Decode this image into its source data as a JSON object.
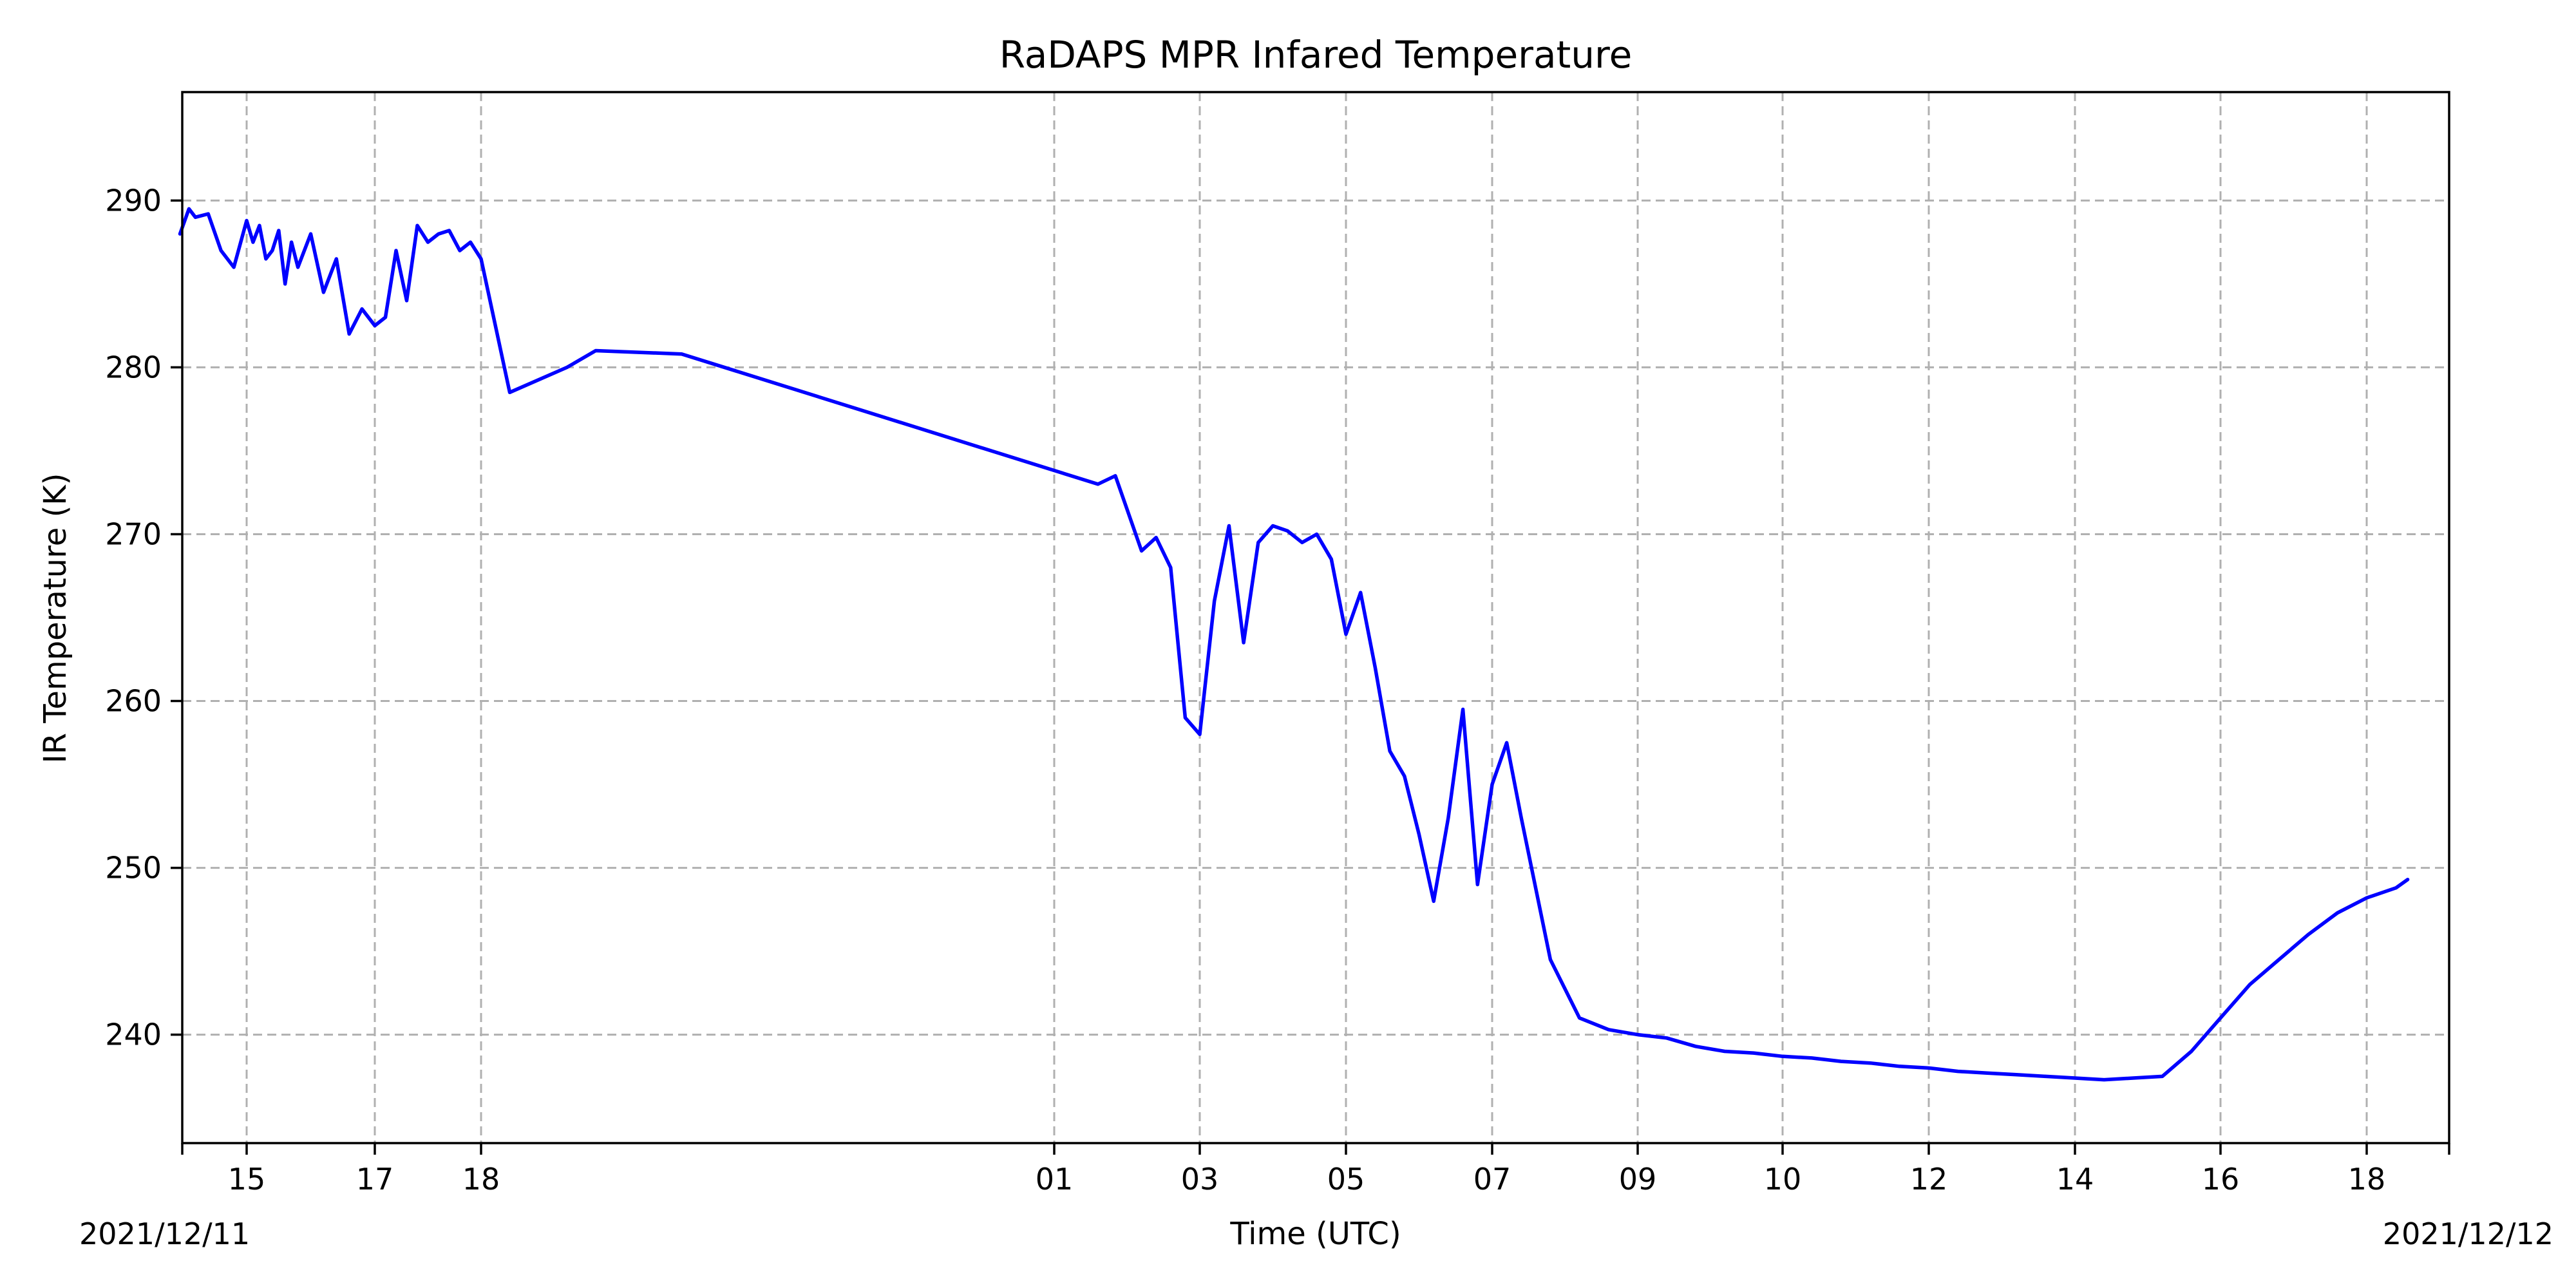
{
  "chart_data": {
    "type": "line",
    "title": "RaDAPS MPR Infared Temperature",
    "xlabel": "Time (UTC)",
    "ylabel": "IR Temperature (K)",
    "ylim": [
      233.5,
      296.5
    ],
    "grid": true,
    "start_date_label": "2021/12/11",
    "end_date_label": "2021/12/12",
    "x_ticks": [
      "15",
      "17",
      "18",
      "01",
      "03",
      "05",
      "07",
      "09",
      "10",
      "12",
      "14",
      "16",
      "18"
    ],
    "y_ticks": [
      240,
      250,
      260,
      270,
      280,
      290
    ],
    "series": [
      {
        "color": "#0000ff",
        "x_ticks_index": [
          -0.52,
          -0.45,
          -0.4,
          -0.3,
          -0.2,
          -0.1,
          0.0,
          0.05,
          0.1,
          0.15,
          0.2,
          0.25,
          0.3,
          0.35,
          0.4,
          0.5,
          0.6,
          0.7,
          0.8,
          0.9,
          1.0,
          1.1,
          1.2,
          1.3,
          1.4,
          1.5,
          1.6,
          1.7,
          1.8,
          1.9,
          2.0,
          2.05,
          2.15,
          2.2,
          2.35,
          3.3,
          3.42,
          3.5,
          3.6,
          3.7,
          3.8,
          3.9,
          4.0,
          4.1,
          4.2,
          4.3,
          4.4,
          4.5,
          4.6,
          4.7,
          4.8,
          4.9,
          5.0,
          5.1,
          5.2,
          5.3,
          5.4,
          5.5,
          5.6,
          5.7,
          5.8,
          5.9,
          6.0,
          6.1,
          6.2,
          6.4,
          6.6,
          6.8,
          7.0,
          7.2,
          7.4,
          7.6,
          7.8,
          8.0,
          8.2,
          8.4,
          8.6,
          8.8,
          9.0,
          9.1,
          9.2,
          9.4,
          9.6,
          9.8,
          10.0,
          10.2,
          10.4,
          10.6,
          10.8,
          11.0,
          11.2,
          11.4,
          11.6,
          11.8,
          12.0,
          12.2,
          12.28
        ],
        "y": [
          288.0,
          289.5,
          289.0,
          289.2,
          287.0,
          286.0,
          288.8,
          287.5,
          288.5,
          286.5,
          287.0,
          288.2,
          285.0,
          287.5,
          286.0,
          288.0,
          284.5,
          286.5,
          282.0,
          283.5,
          282.5,
          283.0,
          287.0,
          284.0,
          288.5,
          287.5,
          288.0,
          288.2,
          287.0,
          287.5,
          286.5,
          278.5,
          280.0,
          281.0,
          280.8,
          273.0,
          273.5,
          271.5,
          269.0,
          269.8,
          268.0,
          259.0,
          258.0,
          266.0,
          270.5,
          263.5,
          269.5,
          270.5,
          270.2,
          269.5,
          270.0,
          268.5,
          264.0,
          266.5,
          262.0,
          257.0,
          255.5,
          252.0,
          248.0,
          253.0,
          259.5,
          249.0,
          255.0,
          257.5,
          253.0,
          244.5,
          241.0,
          240.3,
          240.0,
          239.8,
          239.3,
          239.0,
          238.9,
          238.7,
          238.6,
          238.4,
          238.3,
          238.1,
          238.0,
          237.9,
          237.8,
          237.7,
          237.6,
          237.5,
          237.4,
          237.3,
          237.4,
          237.5,
          239.0,
          241.0,
          243.0,
          244.5,
          246.0,
          247.3,
          248.2,
          248.8,
          249.3
        ]
      }
    ]
  }
}
